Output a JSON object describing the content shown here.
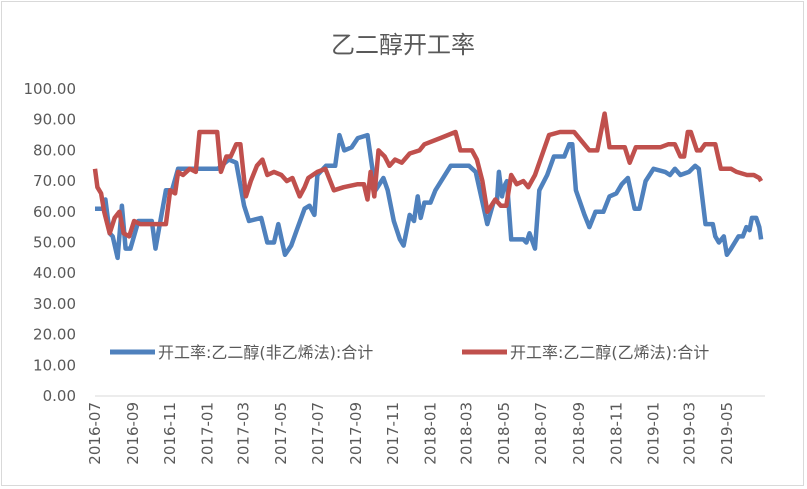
{
  "chart_data": {
    "type": "line",
    "title": "乙二醇开工率",
    "xlabel": "",
    "ylabel": "",
    "ylim": [
      0,
      100
    ],
    "xlim": [
      "2016-07-01",
      "2019-07-01"
    ],
    "yticks": [
      "0.00",
      "10.00",
      "20.00",
      "30.00",
      "40.00",
      "50.00",
      "60.00",
      "70.00",
      "80.00",
      "90.00",
      "100.00"
    ],
    "xticks": [
      "2016-07",
      "2016-09",
      "2016-11",
      "2017-01",
      "2017-03",
      "2017-05",
      "2017-07",
      "2017-09",
      "2017-11",
      "2018-01",
      "2018-03",
      "2018-05",
      "2018-07",
      "2018-09",
      "2018-11",
      "2019-01",
      "2019-03",
      "2019-05"
    ],
    "grid": false,
    "legend": "bottom",
    "series": [
      {
        "name": "开工率:乙二醇(非乙烯法):合计",
        "color": "#4f81bd",
        "points": [
          [
            "2016-07-01",
            61
          ],
          [
            "2016-07-15",
            61
          ],
          [
            "2016-07-18",
            64
          ],
          [
            "2016-07-25",
            53
          ],
          [
            "2016-07-30",
            52
          ],
          [
            "2016-08-07",
            45
          ],
          [
            "2016-08-14",
            62
          ],
          [
            "2016-08-20",
            48
          ],
          [
            "2016-08-28",
            48
          ],
          [
            "2016-09-10",
            57
          ],
          [
            "2016-10-02",
            57
          ],
          [
            "2016-10-08",
            48
          ],
          [
            "2016-10-15",
            56
          ],
          [
            "2016-10-25",
            67
          ],
          [
            "2016-11-04",
            67
          ],
          [
            "2016-11-14",
            74
          ],
          [
            "2017-01-18",
            74
          ],
          [
            "2017-02-05",
            77
          ],
          [
            "2017-02-17",
            76
          ],
          [
            "2017-03-02",
            62
          ],
          [
            "2017-03-10",
            57
          ],
          [
            "2017-03-30",
            58
          ],
          [
            "2017-04-09",
            50
          ],
          [
            "2017-04-20",
            50
          ],
          [
            "2017-04-27",
            56
          ],
          [
            "2017-05-08",
            46
          ],
          [
            "2017-05-18",
            49
          ],
          [
            "2017-05-27",
            54
          ],
          [
            "2017-06-09",
            61
          ],
          [
            "2017-06-17",
            62
          ],
          [
            "2017-06-25",
            59
          ],
          [
            "2017-06-30",
            72
          ],
          [
            "2017-07-14",
            75
          ],
          [
            "2017-07-29",
            75
          ],
          [
            "2017-08-05",
            85
          ],
          [
            "2017-08-13",
            80
          ],
          [
            "2017-08-25",
            81
          ],
          [
            "2017-09-04",
            84
          ],
          [
            "2017-09-20",
            85
          ],
          [
            "2017-10-03",
            67
          ],
          [
            "2017-10-16",
            71
          ],
          [
            "2017-10-23",
            67
          ],
          [
            "2017-11-02",
            57
          ],
          [
            "2017-11-12",
            51
          ],
          [
            "2017-11-18",
            49
          ],
          [
            "2017-11-28",
            59
          ],
          [
            "2017-12-05",
            57
          ],
          [
            "2017-12-11",
            65
          ],
          [
            "2017-12-16",
            58
          ],
          [
            "2017-12-22",
            63
          ],
          [
            "2018-01-01",
            63
          ],
          [
            "2018-01-09",
            67
          ],
          [
            "2018-02-03",
            75
          ],
          [
            "2018-03-05",
            75
          ],
          [
            "2018-03-16",
            73
          ],
          [
            "2018-04-04",
            56
          ],
          [
            "2018-04-14",
            63
          ],
          [
            "2018-04-20",
            64
          ],
          [
            "2018-04-23",
            73
          ],
          [
            "2018-04-28",
            65
          ],
          [
            "2018-05-01",
            68
          ],
          [
            "2018-05-06",
            70
          ],
          [
            "2018-05-13",
            51
          ],
          [
            "2018-06-02",
            51
          ],
          [
            "2018-06-07",
            50
          ],
          [
            "2018-06-12",
            53
          ],
          [
            "2018-06-21",
            48
          ],
          [
            "2018-06-28",
            67
          ],
          [
            "2018-07-11",
            72
          ],
          [
            "2018-07-22",
            78
          ],
          [
            "2018-08-08",
            78
          ],
          [
            "2018-08-16",
            82
          ],
          [
            "2018-08-21",
            82
          ],
          [
            "2018-08-27",
            67
          ],
          [
            "2018-09-10",
            59
          ],
          [
            "2018-09-18",
            55
          ],
          [
            "2018-09-28",
            60
          ],
          [
            "2018-10-11",
            60
          ],
          [
            "2018-10-21",
            65
          ],
          [
            "2018-11-01",
            66
          ],
          [
            "2018-11-10",
            69
          ],
          [
            "2018-11-20",
            71
          ],
          [
            "2018-12-01",
            61
          ],
          [
            "2018-12-09",
            61
          ],
          [
            "2018-12-19",
            70
          ],
          [
            "2019-01-01",
            74
          ],
          [
            "2019-01-20",
            73
          ],
          [
            "2019-01-28",
            72
          ],
          [
            "2019-02-05",
            74
          ],
          [
            "2019-02-14",
            72
          ],
          [
            "2019-02-28",
            73
          ],
          [
            "2019-03-10",
            75
          ],
          [
            "2019-03-16",
            74
          ],
          [
            "2019-03-27",
            56
          ],
          [
            "2019-04-08",
            56
          ],
          [
            "2019-04-12",
            52
          ],
          [
            "2019-04-18",
            50
          ],
          [
            "2019-04-26",
            52
          ],
          [
            "2019-05-01",
            46
          ],
          [
            "2019-05-08",
            48
          ],
          [
            "2019-05-14",
            50
          ],
          [
            "2019-05-20",
            52
          ],
          [
            "2019-05-27",
            52
          ],
          [
            "2019-06-02",
            55
          ],
          [
            "2019-06-07",
            54
          ],
          [
            "2019-06-11",
            58
          ],
          [
            "2019-06-18",
            58
          ],
          [
            "2019-06-23",
            55
          ],
          [
            "2019-06-26",
            51
          ]
        ]
      },
      {
        "name": "开工率:乙二醇(乙烯法):合计",
        "color": "#c0504d",
        "points": [
          [
            "2016-07-01",
            74
          ],
          [
            "2016-07-05",
            68
          ],
          [
            "2016-07-11",
            66
          ],
          [
            "2016-07-16",
            60
          ],
          [
            "2016-07-25",
            53
          ],
          [
            "2016-08-02",
            58
          ],
          [
            "2016-08-10",
            60
          ],
          [
            "2016-08-17",
            53
          ],
          [
            "2016-08-26",
            52
          ],
          [
            "2016-09-03",
            57
          ],
          [
            "2016-09-13",
            56
          ],
          [
            "2016-10-25",
            56
          ],
          [
            "2016-11-01",
            67
          ],
          [
            "2016-11-09",
            66
          ],
          [
            "2016-11-14",
            73
          ],
          [
            "2016-11-22",
            72
          ],
          [
            "2016-12-03",
            74
          ],
          [
            "2016-12-13",
            73
          ],
          [
            "2016-12-19",
            86
          ],
          [
            "2017-01-17",
            86
          ],
          [
            "2017-01-23",
            73
          ],
          [
            "2017-02-01",
            78
          ],
          [
            "2017-02-08",
            78
          ],
          [
            "2017-02-17",
            82
          ],
          [
            "2017-02-24",
            82
          ],
          [
            "2017-03-05",
            65
          ],
          [
            "2017-03-13",
            70
          ],
          [
            "2017-03-23",
            75
          ],
          [
            "2017-04-01",
            77
          ],
          [
            "2017-04-09",
            72
          ],
          [
            "2017-04-20",
            73
          ],
          [
            "2017-05-02",
            72
          ],
          [
            "2017-05-11",
            70
          ],
          [
            "2017-05-20",
            71
          ],
          [
            "2017-06-01",
            65
          ],
          [
            "2017-06-09",
            68
          ],
          [
            "2017-06-15",
            71
          ],
          [
            "2017-06-30",
            73
          ],
          [
            "2017-07-13",
            74
          ],
          [
            "2017-07-27",
            67
          ],
          [
            "2017-08-12",
            68
          ],
          [
            "2017-09-04",
            69
          ],
          [
            "2017-09-14",
            69
          ],
          [
            "2017-09-20",
            64
          ],
          [
            "2017-09-25",
            73
          ],
          [
            "2017-10-01",
            65
          ],
          [
            "2017-10-08",
            80
          ],
          [
            "2017-10-18",
            78
          ],
          [
            "2017-10-26",
            75
          ],
          [
            "2017-11-04",
            77
          ],
          [
            "2017-11-15",
            76
          ],
          [
            "2017-11-28",
            79
          ],
          [
            "2017-12-14",
            80
          ],
          [
            "2017-12-22",
            82
          ],
          [
            "2018-01-17",
            84
          ],
          [
            "2018-02-11",
            86
          ],
          [
            "2018-02-19",
            80
          ],
          [
            "2018-03-10",
            80
          ],
          [
            "2018-03-18",
            77
          ],
          [
            "2018-03-27",
            70
          ],
          [
            "2018-04-04",
            60
          ],
          [
            "2018-04-17",
            64
          ],
          [
            "2018-04-26",
            62
          ],
          [
            "2018-05-05",
            62
          ],
          [
            "2018-05-13",
            72
          ],
          [
            "2018-05-22",
            69
          ],
          [
            "2018-06-02",
            70
          ],
          [
            "2018-06-10",
            68
          ],
          [
            "2018-06-21",
            72
          ],
          [
            "2018-07-14",
            85
          ],
          [
            "2018-08-01",
            86
          ],
          [
            "2018-08-24",
            86
          ],
          [
            "2018-09-18",
            80
          ],
          [
            "2018-10-01",
            80
          ],
          [
            "2018-10-13",
            92
          ],
          [
            "2018-10-21",
            81
          ],
          [
            "2018-11-15",
            81
          ],
          [
            "2018-11-23",
            76
          ],
          [
            "2018-12-03",
            81
          ],
          [
            "2019-01-12",
            81
          ],
          [
            "2019-01-25",
            82
          ],
          [
            "2019-02-05",
            82
          ],
          [
            "2019-02-14",
            78
          ],
          [
            "2019-02-20",
            78
          ],
          [
            "2019-02-26",
            86
          ],
          [
            "2019-03-03",
            86
          ],
          [
            "2019-03-13",
            80
          ],
          [
            "2019-03-19",
            80
          ],
          [
            "2019-03-26",
            82
          ],
          [
            "2019-04-12",
            82
          ],
          [
            "2019-04-21",
            74
          ],
          [
            "2019-05-08",
            74
          ],
          [
            "2019-05-17",
            73
          ],
          [
            "2019-06-03",
            72
          ],
          [
            "2019-06-14",
            72
          ],
          [
            "2019-06-23",
            71
          ],
          [
            "2019-06-26",
            70
          ]
        ]
      }
    ]
  }
}
